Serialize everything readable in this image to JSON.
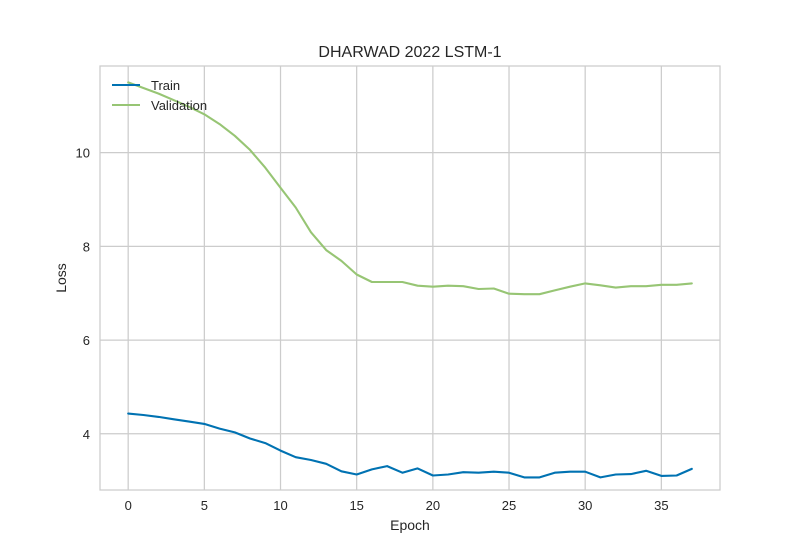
{
  "chart_data": {
    "type": "line",
    "title": "DHARWAD 2022 LSTM-1",
    "xlabel": "Epoch",
    "ylabel": "Loss",
    "xlim": [
      -1.85,
      38.85
    ],
    "ylim": [
      2.8,
      11.85
    ],
    "xticks": [
      0,
      5,
      10,
      15,
      20,
      25,
      30,
      35
    ],
    "yticks": [
      4,
      6,
      8,
      10
    ],
    "grid": true,
    "legend_position": "top-left",
    "x": [
      0,
      1,
      2,
      3,
      4,
      5,
      6,
      7,
      8,
      9,
      10,
      11,
      12,
      13,
      14,
      15,
      16,
      17,
      18,
      19,
      20,
      21,
      22,
      23,
      24,
      25,
      26,
      27,
      28,
      29,
      30,
      31,
      32,
      33,
      34,
      35,
      36,
      37
    ],
    "series": [
      {
        "name": "Train",
        "color": "#0072B2",
        "values": [
          4.43,
          4.4,
          4.36,
          4.31,
          4.26,
          4.21,
          4.11,
          4.03,
          3.9,
          3.8,
          3.64,
          3.5,
          3.44,
          3.36,
          3.2,
          3.13,
          3.24,
          3.31,
          3.17,
          3.26,
          3.11,
          3.13,
          3.18,
          3.17,
          3.19,
          3.17,
          3.07,
          3.07,
          3.17,
          3.19,
          3.19,
          3.07,
          3.13,
          3.14,
          3.21,
          3.1,
          3.11,
          3.25
        ]
      },
      {
        "name": "Validation",
        "color": "#97C574",
        "values": [
          11.5,
          11.38,
          11.26,
          11.12,
          10.98,
          10.82,
          10.61,
          10.36,
          10.06,
          9.68,
          9.25,
          8.83,
          8.3,
          7.92,
          7.69,
          7.4,
          7.24,
          7.24,
          7.24,
          7.16,
          7.14,
          7.16,
          7.15,
          7.09,
          7.1,
          6.99,
          6.98,
          6.98,
          7.06,
          7.14,
          7.21,
          7.17,
          7.12,
          7.15,
          7.15,
          7.18,
          7.18,
          7.21
        ]
      }
    ]
  }
}
